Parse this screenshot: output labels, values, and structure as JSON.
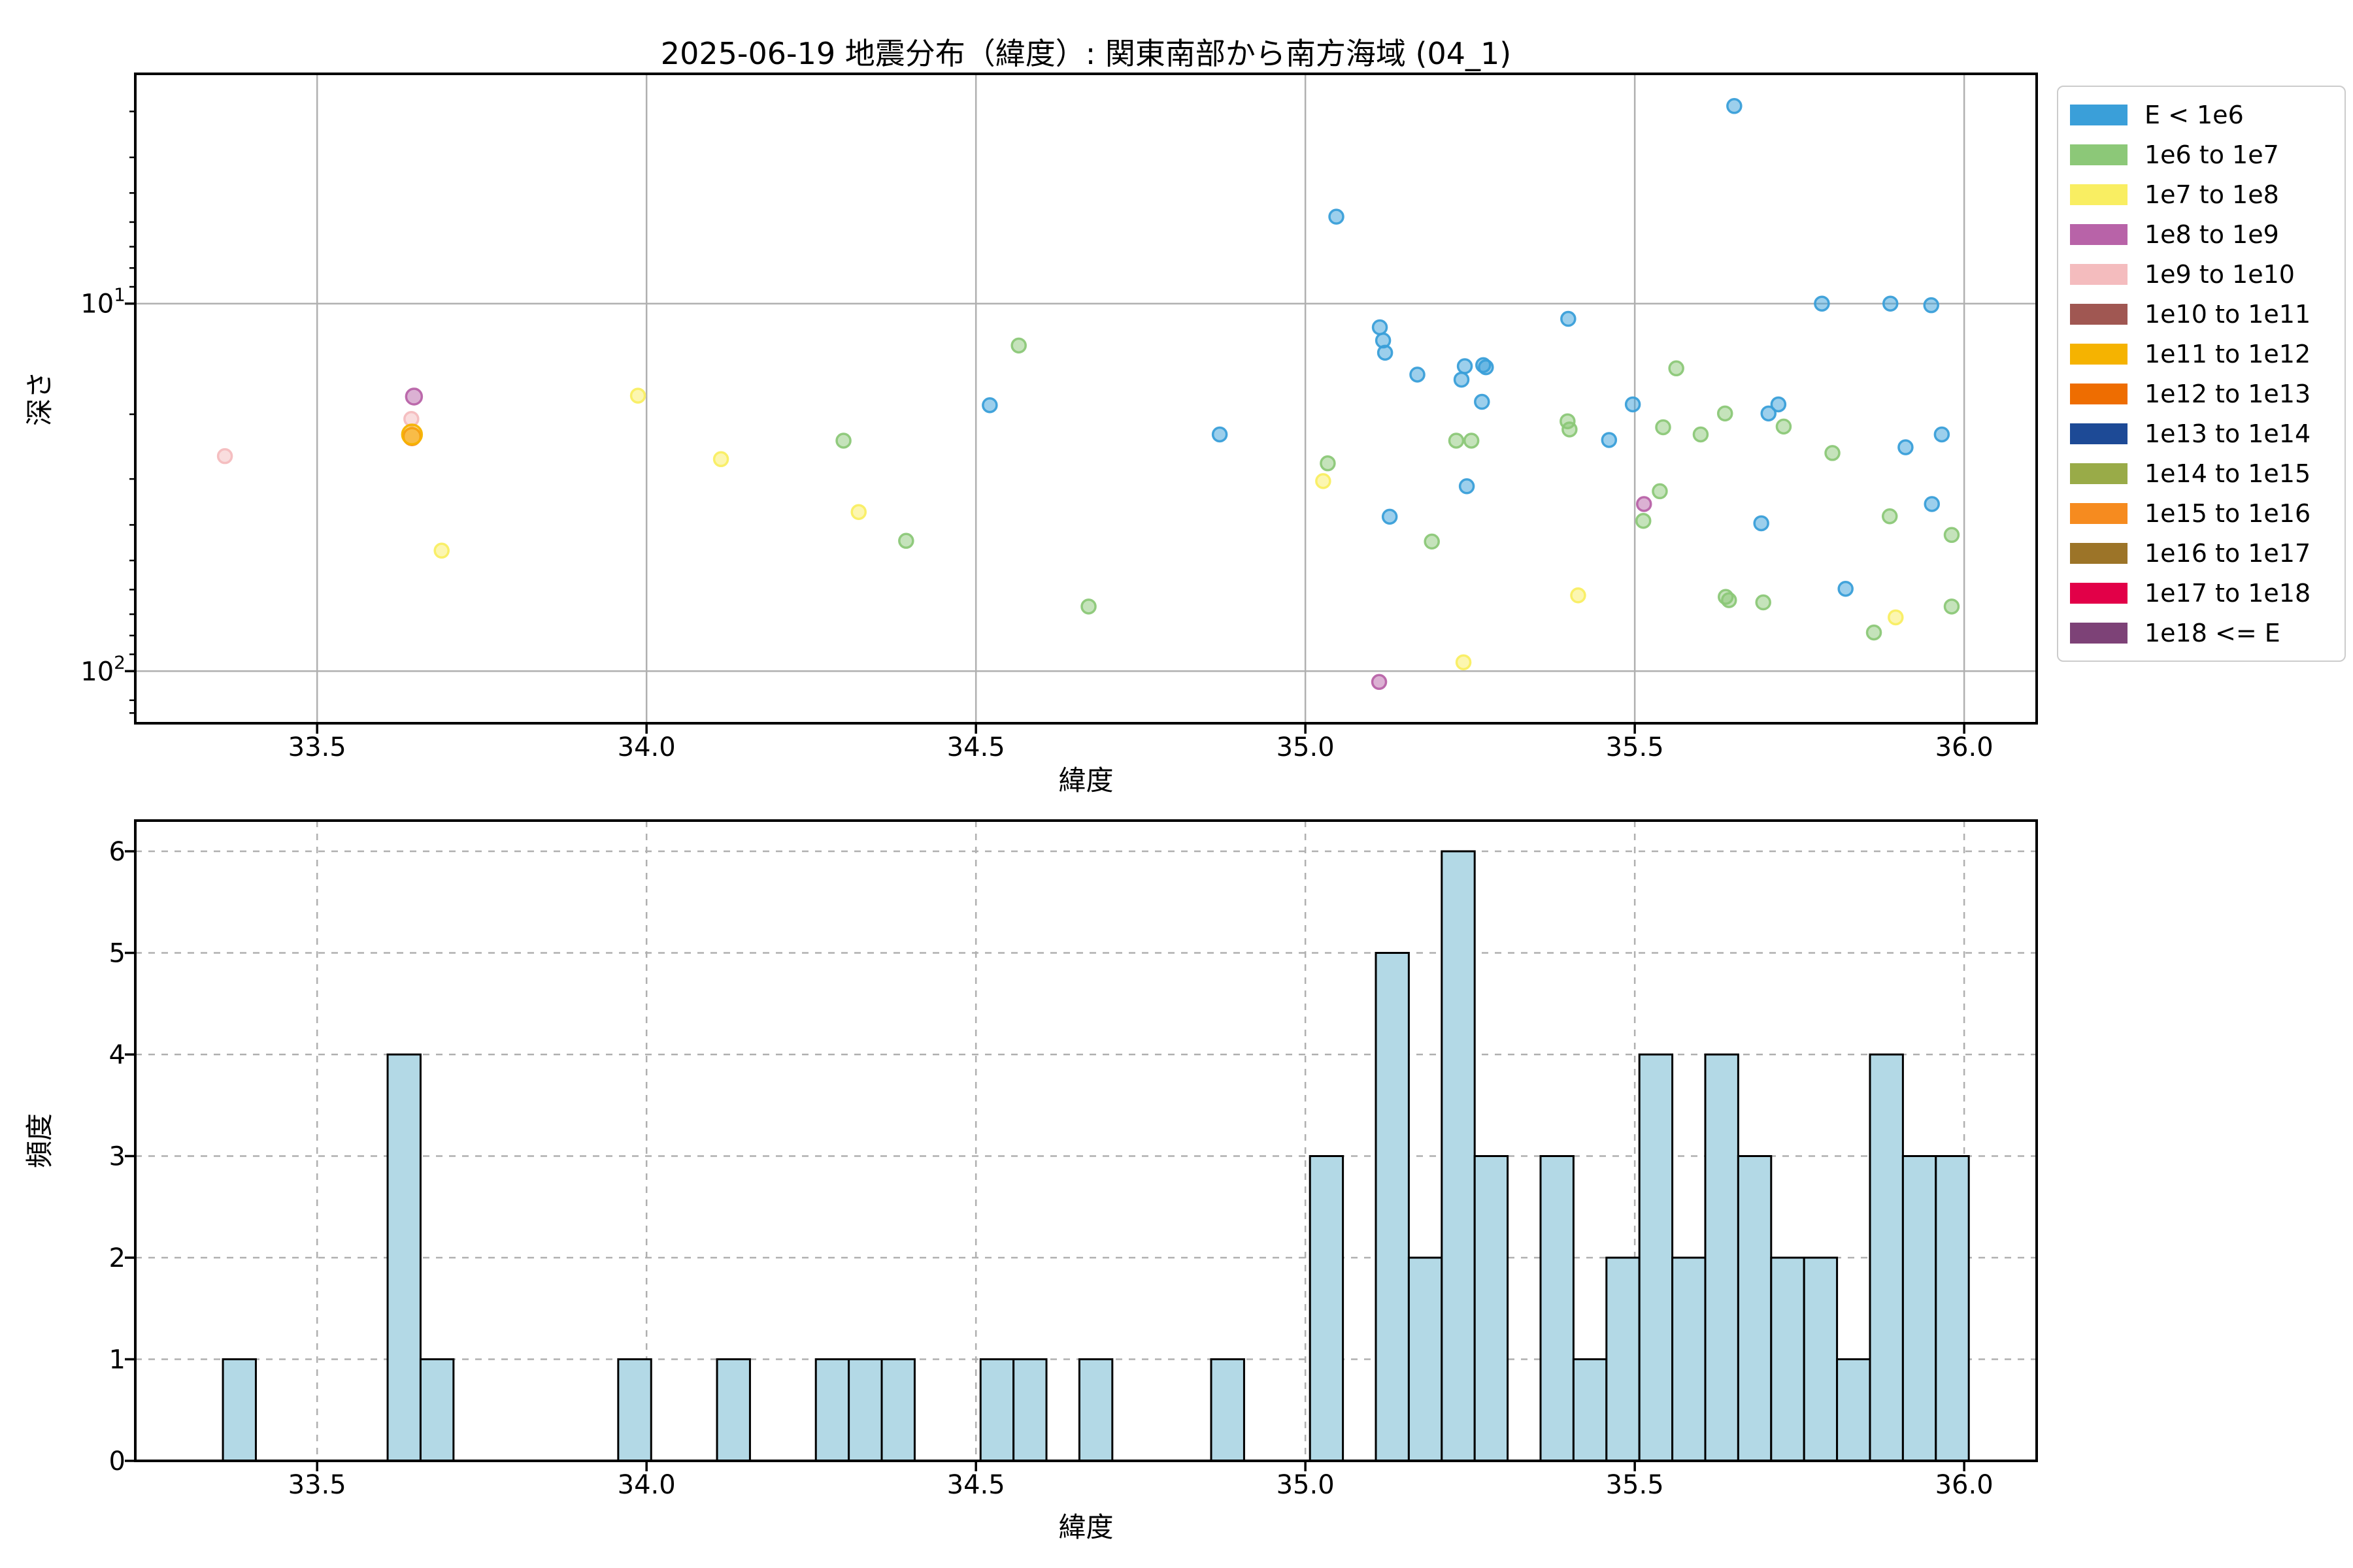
{
  "title": "2025-06-19 地震分布（緯度）: 関東南部から南方海域 (04_1)",
  "axes_labels": {
    "scatter_x": "緯度",
    "scatter_y": "深さ",
    "hist_x": "緯度",
    "hist_y": "頻度"
  },
  "axis_ticks": {
    "lat_values": [
      33.5,
      34.0,
      34.5,
      35.0,
      35.5,
      36.0
    ],
    "lat_labels": [
      "33.5",
      "34.0",
      "34.5",
      "35.0",
      "35.5",
      "36.0"
    ],
    "depth_major": [
      {
        "base": "10",
        "exp": "1",
        "value": 10
      },
      {
        "base": "10",
        "exp": "2",
        "value": 100
      }
    ],
    "depth_minor_values": [
      3,
      4,
      5,
      6,
      7,
      8,
      9,
      20,
      30,
      40,
      50,
      60,
      70,
      80,
      90,
      120,
      130
    ],
    "freq_values": [
      0,
      1,
      2,
      3,
      4,
      5,
      6
    ],
    "freq_labels": [
      "0",
      "1",
      "2",
      "3",
      "4",
      "5",
      "6"
    ]
  },
  "legend": {
    "entries": [
      {
        "label": "E < 1e6",
        "color": "#3a9fd9"
      },
      {
        "label": "1e6 to 1e7",
        "color": "#8cc878"
      },
      {
        "label": "1e7 to 1e8",
        "color": "#f9ee62"
      },
      {
        "label": "1e8 to 1e9",
        "color": "#b863a8"
      },
      {
        "label": "1e9 to 1e10",
        "color": "#f4bcbe"
      },
      {
        "label": "1e10 to 1e11",
        "color": "#a05752"
      },
      {
        "label": "1e11 to 1e12",
        "color": "#f5b301"
      },
      {
        "label": "1e12 to 1e13",
        "color": "#ee6d01"
      },
      {
        "label": "1e13 to 1e14",
        "color": "#1d4a96"
      },
      {
        "label": "1e14 to 1e15",
        "color": "#99ab48"
      },
      {
        "label": "1e15 to 1e16",
        "color": "#f68b1f"
      },
      {
        "label": "1e16 to 1e17",
        "color": "#9c7428"
      },
      {
        "label": "1e17 to 1e18",
        "color": "#e20048"
      },
      {
        "label": "1e18 <= E",
        "color": "#7d4277"
      }
    ]
  },
  "chart_data": [
    {
      "type": "scatter",
      "title": "2025-06-19 地震分布（緯度）: 関東南部から南方海域 (04_1)",
      "xlabel": "緯度",
      "ylabel": "深さ",
      "xlim": [
        33.224,
        36.11
      ],
      "ylim_depth_log_inverted": [
        2.37,
        138.6
      ],
      "grid": "solid, x every 0.5 deg, y at 10 and 100",
      "legend_position": "outside upper right",
      "points": [
        {
          "lat": 33.36,
          "depth": 26.0,
          "energy": "1e9 to 1e10"
        },
        {
          "lat": 33.643,
          "depth": 20.6,
          "energy": "1e9 to 1e10"
        },
        {
          "lat": 33.644,
          "depth": 23.0,
          "energy": "1e15 to 1e16",
          "r": 13
        },
        {
          "lat": 33.644,
          "depth": 22.7,
          "energy": "1e11 to 1e12",
          "r": 15
        },
        {
          "lat": 33.647,
          "depth": 17.9,
          "energy": "1e8 to 1e9",
          "r": 12
        },
        {
          "lat": 33.689,
          "depth": 47.0,
          "energy": "1e7 to 1e8"
        },
        {
          "lat": 33.987,
          "depth": 17.8,
          "energy": "1e7 to 1e8"
        },
        {
          "lat": 34.113,
          "depth": 26.5,
          "energy": "1e7 to 1e8"
        },
        {
          "lat": 34.299,
          "depth": 23.6,
          "energy": "1e6 to 1e7"
        },
        {
          "lat": 34.322,
          "depth": 36.9,
          "energy": "1e7 to 1e8"
        },
        {
          "lat": 34.394,
          "depth": 44.2,
          "energy": "1e6 to 1e7"
        },
        {
          "lat": 34.521,
          "depth": 18.9,
          "energy": "E < 1e6"
        },
        {
          "lat": 34.565,
          "depth": 13.0,
          "energy": "1e6 to 1e7"
        },
        {
          "lat": 34.671,
          "depth": 66.7,
          "energy": "1e6 to 1e7"
        },
        {
          "lat": 34.87,
          "depth": 22.7,
          "energy": "E < 1e6"
        },
        {
          "lat": 35.027,
          "depth": 30.4,
          "energy": "1e7 to 1e8"
        },
        {
          "lat": 35.034,
          "depth": 27.2,
          "energy": "1e6 to 1e7"
        },
        {
          "lat": 35.047,
          "depth": 5.8,
          "energy": "E < 1e6"
        },
        {
          "lat": 35.112,
          "depth": 107.0,
          "energy": "1e8 to 1e9"
        },
        {
          "lat": 35.113,
          "depth": 11.6,
          "energy": "E < 1e6"
        },
        {
          "lat": 35.118,
          "depth": 12.6,
          "energy": "E < 1e6"
        },
        {
          "lat": 35.121,
          "depth": 13.6,
          "energy": "E < 1e6"
        },
        {
          "lat": 35.128,
          "depth": 38.0,
          "energy": "E < 1e6"
        },
        {
          "lat": 35.17,
          "depth": 15.6,
          "energy": "E < 1e6"
        },
        {
          "lat": 35.192,
          "depth": 44.4,
          "energy": "1e6 to 1e7"
        },
        {
          "lat": 35.229,
          "depth": 23.6,
          "energy": "1e6 to 1e7"
        },
        {
          "lat": 35.237,
          "depth": 16.1,
          "energy": "E < 1e6"
        },
        {
          "lat": 35.24,
          "depth": 94.6,
          "energy": "1e7 to 1e8"
        },
        {
          "lat": 35.242,
          "depth": 14.8,
          "energy": "E < 1e6"
        },
        {
          "lat": 35.245,
          "depth": 31.4,
          "energy": "E < 1e6"
        },
        {
          "lat": 35.252,
          "depth": 23.6,
          "energy": "1e6 to 1e7"
        },
        {
          "lat": 35.268,
          "depth": 18.5,
          "energy": "E < 1e6"
        },
        {
          "lat": 35.27,
          "depth": 14.7,
          "energy": "E < 1e6"
        },
        {
          "lat": 35.274,
          "depth": 14.9,
          "energy": "E < 1e6"
        },
        {
          "lat": 35.398,
          "depth": 20.9,
          "energy": "1e6 to 1e7"
        },
        {
          "lat": 35.399,
          "depth": 11.0,
          "energy": "E < 1e6"
        },
        {
          "lat": 35.401,
          "depth": 22.0,
          "energy": "1e6 to 1e7"
        },
        {
          "lat": 35.414,
          "depth": 62.2,
          "energy": "1e7 to 1e8"
        },
        {
          "lat": 35.461,
          "depth": 23.5,
          "energy": "E < 1e6"
        },
        {
          "lat": 35.497,
          "depth": 18.8,
          "energy": "E < 1e6"
        },
        {
          "lat": 35.513,
          "depth": 39.0,
          "energy": "1e6 to 1e7"
        },
        {
          "lat": 35.514,
          "depth": 35.1,
          "energy": "1e8 to 1e9"
        },
        {
          "lat": 35.538,
          "depth": 32.4,
          "energy": "1e6 to 1e7"
        },
        {
          "lat": 35.543,
          "depth": 21.7,
          "energy": "1e6 to 1e7"
        },
        {
          "lat": 35.563,
          "depth": 15.0,
          "energy": "1e6 to 1e7"
        },
        {
          "lat": 35.6,
          "depth": 22.7,
          "energy": "1e6 to 1e7"
        },
        {
          "lat": 35.637,
          "depth": 19.9,
          "energy": "1e6 to 1e7"
        },
        {
          "lat": 35.638,
          "depth": 62.8,
          "energy": "1e6 to 1e7"
        },
        {
          "lat": 35.643,
          "depth": 64.1,
          "energy": "1e6 to 1e7"
        },
        {
          "lat": 35.651,
          "depth": 2.9,
          "energy": "E < 1e6"
        },
        {
          "lat": 35.692,
          "depth": 39.6,
          "energy": "E < 1e6"
        },
        {
          "lat": 35.695,
          "depth": 65.0,
          "energy": "1e6 to 1e7"
        },
        {
          "lat": 35.703,
          "depth": 19.9,
          "energy": "E < 1e6"
        },
        {
          "lat": 35.718,
          "depth": 18.8,
          "energy": "E < 1e6"
        },
        {
          "lat": 35.726,
          "depth": 21.6,
          "energy": "1e6 to 1e7"
        },
        {
          "lat": 35.784,
          "depth": 10.0,
          "energy": "E < 1e6"
        },
        {
          "lat": 35.8,
          "depth": 25.5,
          "energy": "1e6 to 1e7"
        },
        {
          "lat": 35.82,
          "depth": 59.7,
          "energy": "E < 1e6"
        },
        {
          "lat": 35.863,
          "depth": 78.5,
          "energy": "1e6 to 1e7"
        },
        {
          "lat": 35.887,
          "depth": 37.9,
          "energy": "1e6 to 1e7"
        },
        {
          "lat": 35.888,
          "depth": 10.0,
          "energy": "E < 1e6"
        },
        {
          "lat": 35.896,
          "depth": 71.4,
          "energy": "1e7 to 1e8"
        },
        {
          "lat": 35.911,
          "depth": 24.6,
          "energy": "E < 1e6"
        },
        {
          "lat": 35.95,
          "depth": 10.1,
          "energy": "E < 1e6"
        },
        {
          "lat": 35.951,
          "depth": 35.1,
          "energy": "E < 1e6"
        },
        {
          "lat": 35.966,
          "depth": 22.7,
          "energy": "E < 1e6"
        },
        {
          "lat": 35.981,
          "depth": 42.6,
          "energy": "1e6 to 1e7"
        },
        {
          "lat": 35.981,
          "depth": 66.7,
          "energy": "1e6 to 1e7"
        }
      ]
    },
    {
      "type": "bar",
      "subtype": "histogram",
      "xlabel": "緯度",
      "ylabel": "頻度",
      "xlim": [
        33.224,
        36.11
      ],
      "ylim": [
        0,
        6.3
      ],
      "grid": "dashed",
      "bar_color": "#b3d9e6",
      "bin_width": 0.05,
      "bars": [
        {
          "x": 33.357,
          "count": 1
        },
        {
          "x": 33.607,
          "count": 4
        },
        {
          "x": 33.657,
          "count": 1
        },
        {
          "x": 33.957,
          "count": 1
        },
        {
          "x": 34.107,
          "count": 1
        },
        {
          "x": 34.257,
          "count": 1
        },
        {
          "x": 34.307,
          "count": 1
        },
        {
          "x": 34.357,
          "count": 1
        },
        {
          "x": 34.507,
          "count": 1
        },
        {
          "x": 34.557,
          "count": 1
        },
        {
          "x": 34.657,
          "count": 1
        },
        {
          "x": 34.857,
          "count": 1
        },
        {
          "x": 35.007,
          "count": 3
        },
        {
          "x": 35.107,
          "count": 5
        },
        {
          "x": 35.157,
          "count": 2
        },
        {
          "x": 35.207,
          "count": 6
        },
        {
          "x": 35.257,
          "count": 3
        },
        {
          "x": 35.357,
          "count": 3
        },
        {
          "x": 35.407,
          "count": 1
        },
        {
          "x": 35.457,
          "count": 2
        },
        {
          "x": 35.507,
          "count": 4
        },
        {
          "x": 35.557,
          "count": 2
        },
        {
          "x": 35.607,
          "count": 4
        },
        {
          "x": 35.657,
          "count": 3
        },
        {
          "x": 35.707,
          "count": 2
        },
        {
          "x": 35.757,
          "count": 2
        },
        {
          "x": 35.807,
          "count": 1
        },
        {
          "x": 35.857,
          "count": 4
        },
        {
          "x": 35.907,
          "count": 3
        },
        {
          "x": 35.957,
          "count": 3
        }
      ]
    }
  ]
}
